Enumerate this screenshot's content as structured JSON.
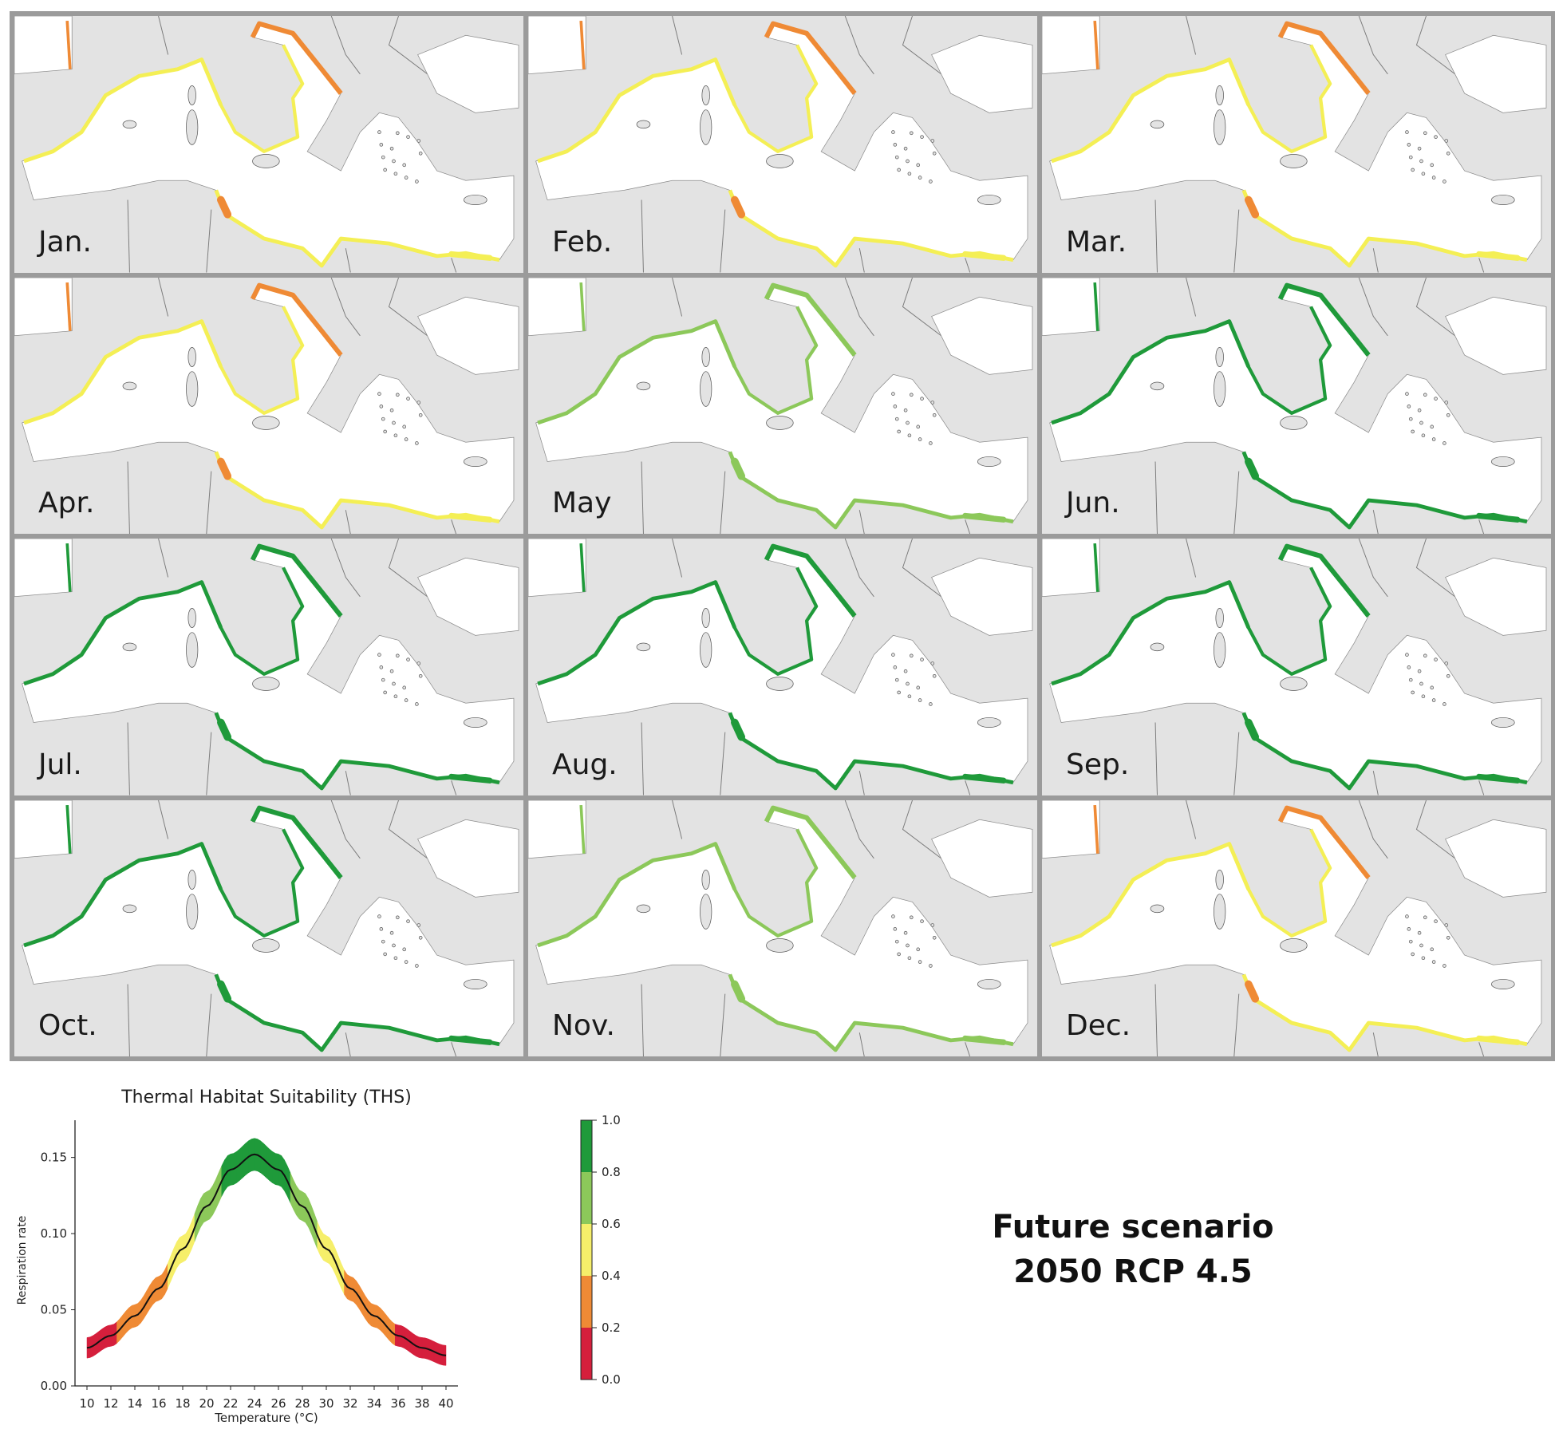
{
  "months": [
    "Jan.",
    "Feb.",
    "Mar.",
    "Apr.",
    "May",
    "Jun.",
    "Jul.",
    "Aug.",
    "Sep.",
    "Oct.",
    "Nov.",
    "Dec."
  ],
  "coast_colors": {
    "Jan.": "#f4ef55",
    "Feb.": "#f4ef55",
    "Mar.": "#f4ef55",
    "Apr.": "#f4ef55",
    "May": "#8cc85a",
    "Jun.": "#1f9a3a",
    "Jul.": "#1f9a3a",
    "Aug.": "#1f9a3a",
    "Sep.": "#1f9a3a",
    "Oct.": "#1f9a3a",
    "Nov.": "#8cc85a",
    "Dec.": "#f4ef55"
  },
  "hot_colors": {
    "Jan.": "#ef8a35",
    "Feb.": "#ef8a35",
    "Mar.": "#ef8a35",
    "Apr.": "#ef8a35",
    "May": "#8cc85a",
    "Jun.": "#1f9a3a",
    "Jul.": "#1f9a3a",
    "Aug.": "#1f9a3a",
    "Sep.": "#1f9a3a",
    "Oct.": "#1f9a3a",
    "Nov.": "#8cc85a",
    "Dec.": "#ef8a35"
  },
  "chart_data": {
    "type": "line",
    "title": "Thermal Habitat Suitability (THS)",
    "xlabel": "Temperature (°C)",
    "ylabel": "Respiration rate",
    "xlim": [
      9,
      41
    ],
    "ylim": [
      0,
      0.165
    ],
    "xticks": [
      10,
      12,
      14,
      16,
      18,
      20,
      22,
      24,
      26,
      28,
      30,
      32,
      34,
      36,
      38,
      40
    ],
    "yticks": [
      0.0,
      0.05,
      0.1,
      0.15
    ],
    "ytick_labels": [
      "0.00",
      "0.05",
      "0.10",
      "0.15"
    ],
    "curve": {
      "x": [
        10,
        12,
        14,
        16,
        18,
        20,
        22,
        24,
        26,
        28,
        30,
        32,
        34,
        36,
        38,
        40
      ],
      "y": [
        0.025,
        0.033,
        0.046,
        0.064,
        0.09,
        0.118,
        0.142,
        0.152,
        0.142,
        0.118,
        0.09,
        0.064,
        0.046,
        0.033,
        0.025,
        0.02
      ]
    },
    "colorbar": {
      "ticks": [
        "1.0",
        "0.8",
        "0.6",
        "0.4",
        "0.2",
        "0.0"
      ],
      "colors": [
        "#d51f3c",
        "#ef8a35",
        "#f6ef6a",
        "#8cc85a",
        "#1f9a3a"
      ]
    }
  },
  "scenario": {
    "line1": "Future scenario",
    "line2": "2050 RCP 4.5"
  }
}
